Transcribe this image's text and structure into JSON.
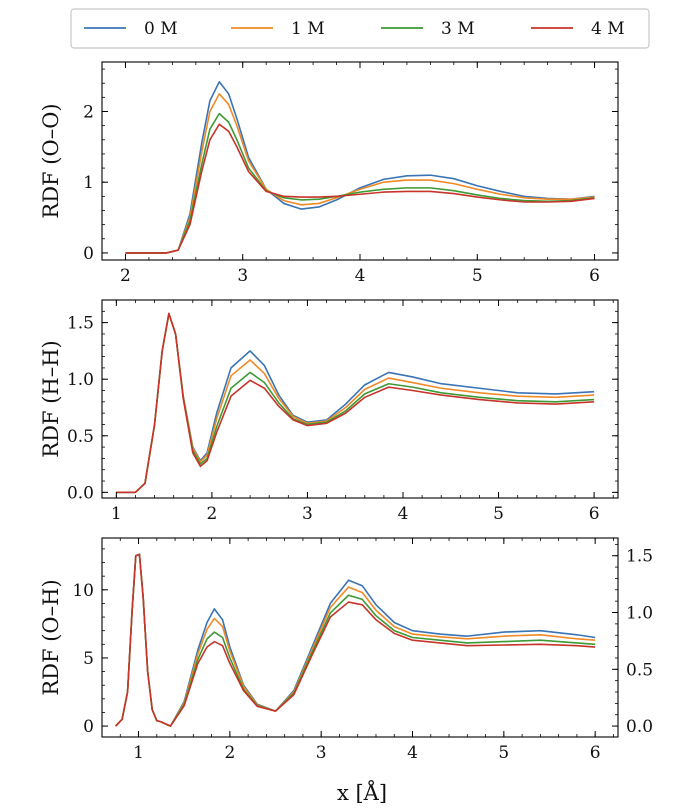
{
  "figure": {
    "xlabel": "x [Å]"
  },
  "legend": {
    "placement": "top-center",
    "entries": [
      {
        "name": "0 M",
        "color": "#3a74b5"
      },
      {
        "name": "1 M",
        "color": "#f08a26"
      },
      {
        "name": "3 M",
        "color": "#3e9a35"
      },
      {
        "name": "4 M",
        "color": "#c7342a"
      }
    ]
  },
  "chart_data": [
    {
      "type": "line",
      "ylabel": "RDF (O–O)",
      "xlim": [
        1.8,
        6.2
      ],
      "ylim": [
        -0.1,
        2.7
      ],
      "xticks": [
        "2",
        "3",
        "4",
        "5",
        "6"
      ],
      "yticks": [
        "0",
        "1",
        "2"
      ],
      "grid": false,
      "series": [
        {
          "name": "0 M",
          "color": "#3a74b5",
          "x": [
            2.0,
            2.35,
            2.45,
            2.55,
            2.65,
            2.72,
            2.8,
            2.88,
            2.95,
            3.05,
            3.2,
            3.35,
            3.5,
            3.65,
            3.8,
            4.0,
            4.2,
            4.4,
            4.6,
            4.8,
            5.0,
            5.2,
            5.4,
            5.6,
            5.8,
            6.0
          ],
          "y": [
            0.0,
            0.0,
            0.04,
            0.55,
            1.55,
            2.15,
            2.42,
            2.25,
            1.9,
            1.35,
            0.9,
            0.7,
            0.62,
            0.65,
            0.75,
            0.92,
            1.04,
            1.09,
            1.1,
            1.05,
            0.95,
            0.87,
            0.8,
            0.77,
            0.76,
            0.8
          ]
        },
        {
          "name": "1 M",
          "color": "#f08a26",
          "x": [
            2.0,
            2.35,
            2.45,
            2.55,
            2.65,
            2.72,
            2.8,
            2.88,
            2.95,
            3.05,
            3.2,
            3.35,
            3.5,
            3.65,
            3.8,
            4.0,
            4.2,
            4.4,
            4.6,
            4.8,
            5.0,
            5.2,
            5.4,
            5.6,
            5.8,
            6.0
          ],
          "y": [
            0.0,
            0.0,
            0.04,
            0.5,
            1.42,
            2.0,
            2.25,
            2.1,
            1.8,
            1.3,
            0.9,
            0.74,
            0.68,
            0.7,
            0.78,
            0.9,
            1.0,
            1.03,
            1.03,
            0.98,
            0.9,
            0.83,
            0.78,
            0.76,
            0.76,
            0.79
          ]
        },
        {
          "name": "3 M",
          "color": "#3e9a35",
          "x": [
            2.0,
            2.35,
            2.45,
            2.55,
            2.65,
            2.72,
            2.8,
            2.88,
            2.95,
            3.05,
            3.2,
            3.35,
            3.5,
            3.65,
            3.8,
            4.0,
            4.2,
            4.4,
            4.6,
            4.8,
            5.0,
            5.2,
            5.4,
            5.6,
            5.8,
            6.0
          ],
          "y": [
            0.0,
            0.0,
            0.04,
            0.45,
            1.25,
            1.75,
            1.97,
            1.85,
            1.6,
            1.2,
            0.88,
            0.78,
            0.75,
            0.76,
            0.8,
            0.86,
            0.9,
            0.92,
            0.92,
            0.88,
            0.82,
            0.77,
            0.74,
            0.73,
            0.74,
            0.78
          ]
        },
        {
          "name": "4 M",
          "color": "#c7342a",
          "x": [
            2.0,
            2.35,
            2.45,
            2.55,
            2.65,
            2.72,
            2.8,
            2.88,
            2.95,
            3.05,
            3.2,
            3.35,
            3.5,
            3.65,
            3.8,
            4.0,
            4.2,
            4.4,
            4.6,
            4.8,
            5.0,
            5.2,
            5.4,
            5.6,
            5.8,
            6.0
          ],
          "y": [
            0.0,
            0.0,
            0.04,
            0.4,
            1.15,
            1.6,
            1.82,
            1.72,
            1.5,
            1.15,
            0.87,
            0.8,
            0.79,
            0.79,
            0.8,
            0.83,
            0.86,
            0.87,
            0.87,
            0.84,
            0.79,
            0.75,
            0.72,
            0.72,
            0.73,
            0.77
          ]
        }
      ]
    },
    {
      "type": "line",
      "ylabel": "RDF (H–H)",
      "xlim": [
        0.85,
        6.25
      ],
      "ylim": [
        -0.05,
        1.7
      ],
      "xticks": [
        "1",
        "2",
        "3",
        "4",
        "5",
        "6"
      ],
      "yticks": [
        "0.0",
        "0.5",
        "1.0",
        "1.5"
      ],
      "grid": false,
      "series": [
        {
          "name": "0 M",
          "color": "#3a74b5",
          "x": [
            1.0,
            1.2,
            1.3,
            1.4,
            1.48,
            1.55,
            1.62,
            1.7,
            1.8,
            1.88,
            1.95,
            2.05,
            2.2,
            2.4,
            2.55,
            2.7,
            2.85,
            3.0,
            3.2,
            3.4,
            3.6,
            3.85,
            4.1,
            4.4,
            4.8,
            5.2,
            5.6,
            6.0
          ],
          "y": [
            0.0,
            0.0,
            0.08,
            0.6,
            1.25,
            1.58,
            1.4,
            0.85,
            0.4,
            0.28,
            0.35,
            0.7,
            1.1,
            1.25,
            1.12,
            0.86,
            0.68,
            0.62,
            0.64,
            0.78,
            0.95,
            1.06,
            1.02,
            0.96,
            0.92,
            0.88,
            0.87,
            0.89
          ]
        },
        {
          "name": "1 M",
          "color": "#f08a26",
          "x": [
            1.0,
            1.2,
            1.3,
            1.4,
            1.48,
            1.55,
            1.62,
            1.7,
            1.8,
            1.88,
            1.95,
            2.05,
            2.2,
            2.4,
            2.55,
            2.7,
            2.85,
            3.0,
            3.2,
            3.4,
            3.6,
            3.85,
            4.1,
            4.4,
            4.8,
            5.2,
            5.6,
            6.0
          ],
          "y": [
            0.0,
            0.0,
            0.08,
            0.6,
            1.25,
            1.58,
            1.4,
            0.85,
            0.39,
            0.27,
            0.33,
            0.65,
            1.03,
            1.17,
            1.05,
            0.83,
            0.67,
            0.61,
            0.63,
            0.75,
            0.91,
            1.01,
            0.97,
            0.92,
            0.88,
            0.85,
            0.84,
            0.86
          ]
        },
        {
          "name": "3 M",
          "color": "#3e9a35",
          "x": [
            1.0,
            1.2,
            1.3,
            1.4,
            1.48,
            1.55,
            1.62,
            1.7,
            1.8,
            1.88,
            1.95,
            2.05,
            2.2,
            2.4,
            2.55,
            2.7,
            2.85,
            3.0,
            3.2,
            3.4,
            3.6,
            3.85,
            4.1,
            4.4,
            4.8,
            5.2,
            5.6,
            6.0
          ],
          "y": [
            0.0,
            0.0,
            0.08,
            0.6,
            1.25,
            1.58,
            1.4,
            0.84,
            0.37,
            0.25,
            0.3,
            0.58,
            0.92,
            1.06,
            0.97,
            0.79,
            0.65,
            0.6,
            0.62,
            0.72,
            0.87,
            0.96,
            0.93,
            0.88,
            0.84,
            0.81,
            0.8,
            0.82
          ]
        },
        {
          "name": "4 M",
          "color": "#c7342a",
          "x": [
            1.0,
            1.2,
            1.3,
            1.4,
            1.48,
            1.55,
            1.62,
            1.7,
            1.8,
            1.88,
            1.95,
            2.05,
            2.2,
            2.4,
            2.55,
            2.7,
            2.85,
            3.0,
            3.2,
            3.4,
            3.6,
            3.85,
            4.1,
            4.4,
            4.8,
            5.2,
            5.6,
            6.0
          ],
          "y": [
            0.0,
            0.0,
            0.08,
            0.6,
            1.25,
            1.58,
            1.4,
            0.83,
            0.35,
            0.23,
            0.28,
            0.53,
            0.85,
            0.99,
            0.92,
            0.76,
            0.64,
            0.59,
            0.61,
            0.7,
            0.84,
            0.93,
            0.9,
            0.86,
            0.82,
            0.79,
            0.78,
            0.8
          ]
        }
      ]
    },
    {
      "type": "line",
      "ylabel": "RDF (O–H)",
      "xlim": [
        0.6,
        6.25
      ],
      "ylim": [
        -0.8,
        13.8
      ],
      "xticks": [
        "1",
        "2",
        "3",
        "4",
        "5",
        "6"
      ],
      "yticks": [
        "0",
        "5",
        "10"
      ],
      "y2ticks": [
        "0.0",
        "0.5",
        "1.0",
        "1.5"
      ],
      "y2_values": [
        0.0,
        0.5,
        1.0,
        1.5
      ],
      "y2_per_y": 0.12,
      "grid": false,
      "series": [
        {
          "name": "0 M",
          "color": "#3a74b5",
          "x": [
            0.75,
            0.82,
            0.88,
            0.93,
            0.97,
            1.01,
            1.05,
            1.1,
            1.15,
            1.2,
            1.25,
            1.35,
            1.5,
            1.65,
            1.75,
            1.83,
            1.92,
            2.0,
            2.15,
            2.3,
            2.5,
            2.7,
            2.9,
            3.1,
            3.3,
            3.45,
            3.6,
            3.8,
            4.0,
            4.3,
            4.6,
            5.0,
            5.4,
            5.8,
            6.0
          ],
          "y": [
            0.0,
            0.5,
            2.5,
            8.5,
            12.5,
            12.6,
            9.5,
            4.0,
            1.2,
            0.4,
            0.3,
            0.0,
            1.8,
            5.6,
            7.6,
            8.6,
            7.8,
            5.8,
            3.0,
            1.6,
            1.1,
            2.6,
            5.8,
            9.0,
            10.7,
            10.3,
            8.9,
            7.6,
            7.0,
            6.75,
            6.6,
            6.9,
            7.0,
            6.7,
            6.5
          ]
        },
        {
          "name": "1 M",
          "color": "#f08a26",
          "x": [
            0.75,
            0.82,
            0.88,
            0.93,
            0.97,
            1.01,
            1.05,
            1.1,
            1.15,
            1.2,
            1.25,
            1.35,
            1.5,
            1.65,
            1.75,
            1.83,
            1.92,
            2.0,
            2.15,
            2.3,
            2.5,
            2.7,
            2.9,
            3.1,
            3.3,
            3.45,
            3.6,
            3.8,
            4.0,
            4.3,
            4.6,
            5.0,
            5.4,
            5.8,
            6.0
          ],
          "y": [
            0.0,
            0.5,
            2.5,
            8.5,
            12.5,
            12.6,
            9.5,
            4.0,
            1.2,
            0.4,
            0.3,
            0.0,
            1.7,
            5.3,
            7.1,
            7.9,
            7.3,
            5.5,
            2.9,
            1.55,
            1.1,
            2.5,
            5.6,
            8.7,
            10.2,
            9.8,
            8.5,
            7.3,
            6.75,
            6.55,
            6.4,
            6.6,
            6.7,
            6.4,
            6.3
          ]
        },
        {
          "name": "3 M",
          "color": "#3e9a35",
          "x": [
            0.75,
            0.82,
            0.88,
            0.93,
            0.97,
            1.01,
            1.05,
            1.1,
            1.15,
            1.2,
            1.25,
            1.35,
            1.5,
            1.65,
            1.75,
            1.83,
            1.92,
            2.0,
            2.15,
            2.3,
            2.5,
            2.7,
            2.9,
            3.1,
            3.3,
            3.45,
            3.6,
            3.8,
            4.0,
            4.3,
            4.6,
            5.0,
            5.4,
            5.8,
            6.0
          ],
          "y": [
            0.0,
            0.5,
            2.5,
            8.5,
            12.5,
            12.6,
            9.5,
            4.0,
            1.2,
            0.4,
            0.3,
            0.0,
            1.6,
            4.9,
            6.4,
            6.9,
            6.5,
            5.0,
            2.7,
            1.5,
            1.1,
            2.4,
            5.4,
            8.3,
            9.6,
            9.3,
            8.1,
            7.0,
            6.5,
            6.3,
            6.1,
            6.2,
            6.3,
            6.1,
            6.0
          ]
        },
        {
          "name": "4 M",
          "color": "#c7342a",
          "x": [
            0.75,
            0.82,
            0.88,
            0.93,
            0.97,
            1.01,
            1.05,
            1.1,
            1.15,
            1.2,
            1.25,
            1.35,
            1.5,
            1.65,
            1.75,
            1.83,
            1.92,
            2.0,
            2.15,
            2.3,
            2.5,
            2.7,
            2.9,
            3.1,
            3.3,
            3.45,
            3.6,
            3.8,
            4.0,
            4.3,
            4.6,
            5.0,
            5.4,
            5.8,
            6.0
          ],
          "y": [
            0.0,
            0.5,
            2.5,
            8.5,
            12.5,
            12.6,
            9.5,
            4.0,
            1.2,
            0.4,
            0.3,
            0.0,
            1.5,
            4.6,
            5.8,
            6.2,
            5.9,
            4.6,
            2.6,
            1.45,
            1.1,
            2.3,
            5.2,
            8.0,
            9.1,
            8.9,
            7.8,
            6.8,
            6.3,
            6.1,
            5.9,
            5.95,
            6.0,
            5.9,
            5.8
          ]
        }
      ]
    }
  ]
}
